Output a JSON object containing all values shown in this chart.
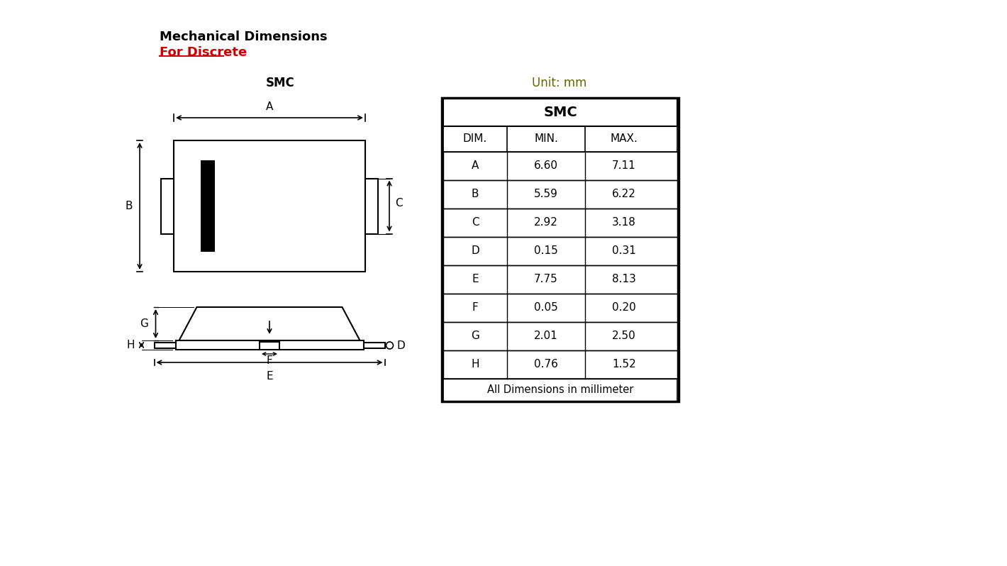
{
  "title1": "Mechanical Dimensions",
  "title2": "For Discrete",
  "label_smc": "SMC",
  "label_unit": "Unit: mm",
  "bg_color": "#ffffff",
  "table_header": "SMC",
  "table_cols": [
    "DIM.",
    "MIN.",
    "MAX."
  ],
  "table_rows": [
    [
      "A",
      "6.60",
      "7.11"
    ],
    [
      "B",
      "5.59",
      "6.22"
    ],
    [
      "C",
      "2.92",
      "3.18"
    ],
    [
      "D",
      "0.15",
      "0.31"
    ],
    [
      "E",
      "7.75",
      "8.13"
    ],
    [
      "F",
      "0.05",
      "0.20"
    ],
    [
      "G",
      "2.01",
      "2.50"
    ],
    [
      "H",
      "0.76",
      "1.52"
    ]
  ],
  "table_footer": "All Dimensions in millimeter",
  "title1_color": "#000000",
  "title2_color": "#cc0000",
  "diagram_color": "#000000"
}
